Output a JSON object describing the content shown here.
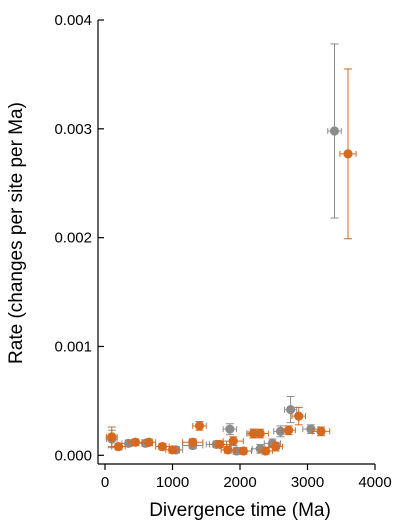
{
  "chart_data": {
    "type": "scatter",
    "xlabel": "Divergence time (Ma)",
    "ylabel": "Rate (changes per site per Ma)",
    "xlim": [
      0,
      4000
    ],
    "ylim": [
      -8e-05,
      0.004
    ],
    "x_ticks": [
      0,
      1000,
      2000,
      3000,
      4000
    ],
    "x_tick_labels": [
      "0",
      "1000",
      "2000",
      "3000",
      "4000"
    ],
    "y_ticks": [
      0.0,
      0.001,
      0.002,
      0.003,
      0.004
    ],
    "y_tick_labels": [
      "0.000",
      "0.001",
      "0.002",
      "0.003",
      "0.004"
    ],
    "grid": false,
    "error_bars": true,
    "series": [
      {
        "color": "#8c8c8c",
        "points": [
          {
            "x": 3400,
            "y": 0.00298,
            "xerr": 100,
            "yerr": 0.0008
          },
          {
            "x": 2750,
            "y": 0.00042,
            "xerr": 90,
            "yerr": 0.00012
          },
          {
            "x": 3050,
            "y": 0.00024,
            "xerr": 120,
            "yerr": 4e-05
          },
          {
            "x": 2600,
            "y": 0.00022,
            "xerr": 100,
            "yerr": 5e-05
          },
          {
            "x": 2300,
            "y": 6e-05,
            "xerr": 120,
            "yerr": 4e-05
          },
          {
            "x": 2480,
            "y": 0.00011,
            "xerr": 120,
            "yerr": 4e-05
          },
          {
            "x": 1850,
            "y": 0.00024,
            "xerr": 100,
            "yerr": 5e-05
          },
          {
            "x": 2200,
            "y": 0.0002,
            "xerr": 100,
            "yerr": 4e-05
          },
          {
            "x": 1650,
            "y": 0.0001,
            "xerr": 150,
            "yerr": 3e-05
          },
          {
            "x": 1300,
            "y": 9e-05,
            "xerr": 150,
            "yerr": 3e-05
          },
          {
            "x": 1050,
            "y": 5e-05,
            "xerr": 100,
            "yerr": 3e-05
          },
          {
            "x": 600,
            "y": 0.00011,
            "xerr": 100,
            "yerr": 3e-05
          },
          {
            "x": 350,
            "y": 0.00011,
            "xerr": 100,
            "yerr": 3e-05
          },
          {
            "x": 100,
            "y": 0.00015,
            "xerr": 80,
            "yerr": 8e-05
          },
          {
            "x": 1950,
            "y": 4e-05,
            "xerr": 120,
            "yerr": 3e-05
          }
        ]
      },
      {
        "color": "#d4691f",
        "points": [
          {
            "x": 3600,
            "y": 0.00277,
            "xerr": 120,
            "yerr": 0.00078
          },
          {
            "x": 2870,
            "y": 0.00036,
            "xerr": 100,
            "yerr": 8e-05
          },
          {
            "x": 3200,
            "y": 0.00022,
            "xerr": 130,
            "yerr": 4e-05
          },
          {
            "x": 2720,
            "y": 0.00023,
            "xerr": 100,
            "yerr": 4e-05
          },
          {
            "x": 2530,
            "y": 8e-05,
            "xerr": 100,
            "yerr": 4e-05
          },
          {
            "x": 2380,
            "y": 4e-05,
            "xerr": 100,
            "yerr": 3e-05
          },
          {
            "x": 2300,
            "y": 0.0002,
            "xerr": 120,
            "yerr": 4e-05
          },
          {
            "x": 2050,
            "y": 4e-05,
            "xerr": 120,
            "yerr": 3e-05
          },
          {
            "x": 1900,
            "y": 0.00013,
            "xerr": 150,
            "yerr": 4e-05
          },
          {
            "x": 1820,
            "y": 5e-05,
            "xerr": 100,
            "yerr": 3e-05
          },
          {
            "x": 1700,
            "y": 0.0001,
            "xerr": 150,
            "yerr": 3e-05
          },
          {
            "x": 1400,
            "y": 0.00027,
            "xerr": 100,
            "yerr": 4e-05
          },
          {
            "x": 1300,
            "y": 0.00012,
            "xerr": 150,
            "yerr": 3e-05
          },
          {
            "x": 1000,
            "y": 5e-05,
            "xerr": 100,
            "yerr": 3e-05
          },
          {
            "x": 850,
            "y": 8e-05,
            "xerr": 100,
            "yerr": 3e-05
          },
          {
            "x": 650,
            "y": 0.00012,
            "xerr": 100,
            "yerr": 3e-05
          },
          {
            "x": 450,
            "y": 0.00012,
            "xerr": 100,
            "yerr": 3e-05
          },
          {
            "x": 200,
            "y": 8e-05,
            "xerr": 100,
            "yerr": 3e-05
          },
          {
            "x": 100,
            "y": 0.00017,
            "xerr": 80,
            "yerr": 9e-05
          },
          {
            "x": 2200,
            "y": 0.0002,
            "xerr": 80,
            "yerr": 4e-05
          }
        ]
      }
    ]
  }
}
